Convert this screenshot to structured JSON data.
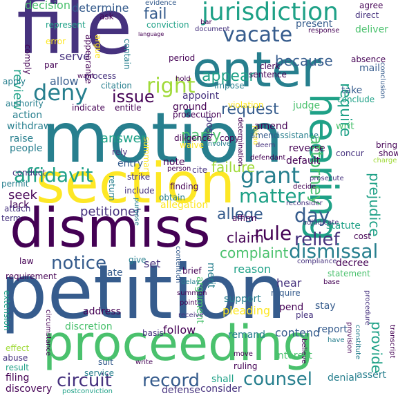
{
  "words": [
    {
      "text": "file",
      "color": "#46327e",
      "rotate": false
    },
    {
      "text": "motion",
      "color": "#277f8e",
      "rotate": false
    },
    {
      "text": "petition",
      "color": "#365c8d",
      "rotate": false
    },
    {
      "text": "dismiss",
      "color": "#440154",
      "rotate": false
    },
    {
      "text": "section",
      "color": "#fde725",
      "rotate": false
    },
    {
      "text": "proceeding",
      "color": "#4ac16d",
      "rotate": false
    },
    {
      "text": "enter",
      "color": "#277f8e",
      "rotate": false
    },
    {
      "text": "hearing",
      "color": "#1fa187",
      "rotate": true
    },
    {
      "text": "jurisdiction",
      "color": "#1fa187",
      "rotate": false
    },
    {
      "text": "deny",
      "color": "#277f8e",
      "rotate": false
    },
    {
      "text": "vacate",
      "color": "#365c8d",
      "rotate": false
    },
    {
      "text": "grant",
      "color": "#277f8e",
      "rotate": false
    },
    {
      "text": "right",
      "color": "#a0da39",
      "rotate": false
    },
    {
      "text": "affidavit",
      "color": "#1fa187",
      "rotate": false
    },
    {
      "text": "matter",
      "color": "#1fa187",
      "rotate": false
    },
    {
      "text": "day",
      "color": "#365c8d",
      "rotate": false
    },
    {
      "text": "rule",
      "color": "#440154",
      "rotate": false
    },
    {
      "text": "relief",
      "color": "#46327e",
      "rotate": false
    },
    {
      "text": "dismissal",
      "color": "#277f8e",
      "rotate": false
    },
    {
      "text": "notice",
      "color": "#365c8d",
      "rotate": false
    },
    {
      "text": "claim",
      "color": "#440154",
      "rotate": false
    },
    {
      "text": "allege",
      "color": "#365c8d",
      "rotate": false
    },
    {
      "text": "counsel",
      "color": "#277f8e",
      "rotate": false
    },
    {
      "text": "circuit",
      "color": "#46327e",
      "rotate": false
    },
    {
      "text": "record",
      "color": "#365c8d",
      "rotate": false
    },
    {
      "text": "attorney",
      "color": "#4ac16d",
      "rotate": true
    },
    {
      "text": "request",
      "color": "#365c8d",
      "rotate": false
    },
    {
      "text": "fail",
      "color": "#365c8d",
      "rotate": false
    },
    {
      "text": "issue",
      "color": "#440154",
      "rotate": false
    },
    {
      "text": "appear",
      "color": "#1fa187",
      "rotate": false
    },
    {
      "text": "because",
      "color": "#365c8d",
      "rotate": false
    },
    {
      "text": "require",
      "color": "#1fa187",
      "rotate": true
    },
    {
      "text": "failure",
      "color": "#a0da39",
      "rotate": false
    },
    {
      "text": "party",
      "color": "#4ac16d",
      "rotate": false
    },
    {
      "text": "petitioner",
      "color": "#46327e",
      "rotate": false
    },
    {
      "text": "complaint",
      "color": "#4ac16d",
      "rotate": false
    },
    {
      "text": "provide",
      "color": "#1fa187",
      "rotate": true
    },
    {
      "text": "prejudice",
      "color": "#1fa187",
      "rotate": true
    },
    {
      "text": "answer",
      "color": "#1fa187",
      "rotate": false
    },
    {
      "text": "review",
      "color": "#1fa187",
      "rotate": true
    },
    {
      "text": "decision",
      "color": "#4ac16d",
      "rotate": false
    },
    {
      "text": "determine",
      "color": "#365c8d",
      "rotate": false
    },
    {
      "text": "serve",
      "color": "#46327e",
      "rotate": false
    },
    {
      "text": "allow",
      "color": "#365c8d",
      "rotate": false
    },
    {
      "text": "comply",
      "color": "#440154",
      "rotate": true
    },
    {
      "text": "error",
      "color": "#fde725",
      "rotate": false
    },
    {
      "text": "argue",
      "color": "#fde725",
      "rotate": true
    },
    {
      "text": "par",
      "color": "#440154",
      "rotate": false
    },
    {
      "text": "present",
      "color": "#365c8d",
      "rotate": false
    },
    {
      "text": "deliver",
      "color": "#4ac16d",
      "rotate": false
    },
    {
      "text": "action",
      "color": "#277f8e",
      "rotate": false
    },
    {
      "text": "withdraw",
      "color": "#277f8e",
      "rotate": false
    },
    {
      "text": "raise",
      "color": "#277f8e",
      "rotate": false
    },
    {
      "text": "people",
      "color": "#277f8e",
      "rotate": false
    },
    {
      "text": "seek",
      "color": "#440154",
      "rotate": false
    },
    {
      "text": "lack",
      "color": "#440154",
      "rotate": false
    },
    {
      "text": "authority",
      "color": "#277f8e",
      "rotate": false
    },
    {
      "text": "judge",
      "color": "#4ac16d",
      "rotate": false
    },
    {
      "text": "amend",
      "color": "#440154",
      "rotate": false
    },
    {
      "text": "reverse",
      "color": "#440154",
      "rotate": false
    },
    {
      "text": "default",
      "color": "#440154",
      "rotate": false
    },
    {
      "text": "post",
      "color": "#46327e",
      "rotate": true
    },
    {
      "text": "ground",
      "color": "#440154",
      "rotate": false
    },
    {
      "text": "appoint",
      "color": "#46327e",
      "rotate": false
    },
    {
      "text": "entry",
      "color": "#365c8d",
      "rotate": false
    },
    {
      "text": "note",
      "color": "#440154",
      "rotate": false
    },
    {
      "text": "set",
      "color": "#46327e",
      "rotate": false
    },
    {
      "text": "reason",
      "color": "#1fa187",
      "rotate": false
    },
    {
      "text": "hear",
      "color": "#46327e",
      "rotate": false
    },
    {
      "text": "date",
      "color": "#365c8d",
      "rotate": false
    },
    {
      "text": "address",
      "color": "#440154",
      "rotate": false
    },
    {
      "text": "discretion",
      "color": "#4ac16d",
      "rotate": false
    },
    {
      "text": "follow",
      "color": "#440154",
      "rotate": false
    },
    {
      "text": "support",
      "color": "#277f8e",
      "rotate": false
    },
    {
      "text": "pleading",
      "color": "#fde725",
      "rotate": false
    },
    {
      "text": "remand",
      "color": "#277f8e",
      "rotate": false
    },
    {
      "text": "contend",
      "color": "#365c8d",
      "rotate": false
    },
    {
      "text": "interest",
      "color": "#4ac16d",
      "rotate": false
    },
    {
      "text": "shall",
      "color": "#1fa187",
      "rotate": false
    },
    {
      "text": "consider",
      "color": "#46327e",
      "rotate": false
    },
    {
      "text": "defense",
      "color": "#46327e",
      "rotate": false
    },
    {
      "text": "filing",
      "color": "#440154",
      "rotate": false
    },
    {
      "text": "discovery",
      "color": "#440154",
      "rotate": false
    },
    {
      "text": "result",
      "color": "#1fa187",
      "rotate": false
    },
    {
      "text": "merit",
      "color": "#277f8e",
      "rotate": true
    },
    {
      "text": "argument",
      "color": "#4ac16d",
      "rotate": true
    },
    {
      "text": "summary",
      "color": "#fde725",
      "rotate": true
    },
    {
      "text": "allegation",
      "color": "#fde725",
      "rotate": false
    },
    {
      "text": "require",
      "color": "#365c8d",
      "rotate": false
    },
    {
      "text": "amend",
      "color": "#365c8d",
      "rotate": false
    },
    {
      "text": "take",
      "color": "#365c8d",
      "rotate": false
    },
    {
      "text": "conclude",
      "color": "#1fa187",
      "rotate": false
    },
    {
      "text": "writ",
      "color": "#4ac16d",
      "rotate": false
    },
    {
      "text": "mail",
      "color": "#365c8d",
      "rotate": false
    },
    {
      "text": "statute",
      "color": "#1fa187",
      "rotate": false
    },
    {
      "text": "cost",
      "color": "#440154",
      "rotate": false
    },
    {
      "text": "decree",
      "color": "#440154",
      "rotate": false
    },
    {
      "text": "statement",
      "color": "#4ac16d",
      "rotate": false
    },
    {
      "text": "report",
      "color": "#365c8d",
      "rotate": false
    },
    {
      "text": "stay",
      "color": "#365c8d",
      "rotate": false
    },
    {
      "text": "pend",
      "color": "#440154",
      "rotate": false
    },
    {
      "text": "plea",
      "color": "#46327e",
      "rotate": false
    },
    {
      "text": "ruling",
      "color": "#440154",
      "rotate": false
    },
    {
      "text": "denial",
      "color": "#277f8e",
      "rotate": false
    },
    {
      "text": "assert",
      "color": "#277f8e",
      "rotate": false
    },
    {
      "text": "service",
      "color": "#277f8e",
      "rotate": false
    },
    {
      "text": "suit",
      "color": "#365c8d",
      "rotate": false
    },
    {
      "text": "basis",
      "color": "#46327e",
      "rotate": false
    },
    {
      "text": "give",
      "color": "#277f8e",
      "rotate": false
    },
    {
      "text": "law",
      "color": "#440154",
      "rotate": false
    },
    {
      "text": "requirement",
      "color": "#440154",
      "rotate": false
    },
    {
      "text": "extension",
      "color": "#1fa187",
      "rotate": true
    },
    {
      "text": "effect",
      "color": "#a0da39",
      "rotate": false
    },
    {
      "text": "abuse",
      "color": "#46327e",
      "rotate": false
    },
    {
      "text": "attach",
      "color": "#46327e",
      "rotate": false
    },
    {
      "text": "conduct",
      "color": "#46327e",
      "rotate": false
    },
    {
      "text": "permit",
      "color": "#277f8e",
      "rotate": false
    },
    {
      "text": "term",
      "color": "#46327e",
      "rotate": false
    },
    {
      "text": "finding",
      "color": "#440154",
      "rotate": false
    },
    {
      "text": "obtain",
      "color": "#277f8e",
      "rotate": false
    },
    {
      "text": "include",
      "color": "#46327e",
      "rotate": false
    },
    {
      "text": "return",
      "color": "#277f8e",
      "rotate": true
    },
    {
      "text": "strike",
      "color": "#46327e",
      "rotate": false
    },
    {
      "text": "rely",
      "color": "#46327e",
      "rotate": false
    },
    {
      "text": "indicate",
      "color": "#440154",
      "rotate": false
    },
    {
      "text": "entitle",
      "color": "#440154",
      "rotate": false
    },
    {
      "text": "citation",
      "color": "#277f8e",
      "rotate": false
    },
    {
      "text": "prosecution",
      "color": "#440154",
      "rotate": false
    },
    {
      "text": "diligence",
      "color": "#440154",
      "rotate": false
    },
    {
      "text": "violation",
      "color": "#fde725",
      "rotate": false
    },
    {
      "text": "copy",
      "color": "#440154",
      "rotate": false
    },
    {
      "text": "assistance",
      "color": "#277f8e",
      "rotate": false
    },
    {
      "text": "concur",
      "color": "#46327e",
      "rotate": false
    },
    {
      "text": "process",
      "color": "#46327e",
      "rotate": false
    },
    {
      "text": "appearance",
      "color": "#440154",
      "rotate": true
    },
    {
      "text": "contain",
      "color": "#277f8e",
      "rotate": true
    },
    {
      "text": "want",
      "color": "#440154",
      "rotate": false
    },
    {
      "text": "period",
      "color": "#440154",
      "rotate": false
    },
    {
      "text": "conviction",
      "color": "#1fa187",
      "rotate": false
    },
    {
      "text": "document",
      "color": "#46327e",
      "rotate": false
    },
    {
      "text": "clerk",
      "color": "#440154",
      "rotate": false
    },
    {
      "text": "sentence",
      "color": "#440154",
      "rotate": false
    },
    {
      "text": "impose",
      "color": "#277f8e",
      "rotate": false
    },
    {
      "text": "response",
      "color": "#440154",
      "rotate": false
    },
    {
      "text": "absence",
      "color": "#440154",
      "rotate": false
    },
    {
      "text": "direct",
      "color": "#46327e",
      "rotate": false
    },
    {
      "text": "agree",
      "color": "#440154",
      "rotate": false
    },
    {
      "text": "represent",
      "color": "#1fa187",
      "rotate": false
    },
    {
      "text": "ask",
      "color": "#440154",
      "rotate": false
    },
    {
      "text": "evidence",
      "color": "#365c8d",
      "rotate": false
    },
    {
      "text": "apply",
      "color": "#277f8e",
      "rotate": false
    },
    {
      "text": "bar",
      "color": "#440154",
      "rotate": false
    },
    {
      "text": "conclusion",
      "color": "#365c8d",
      "rotate": true
    },
    {
      "text": "bring",
      "color": "#440154",
      "rotate": false
    },
    {
      "text": "show",
      "color": "#440154",
      "rotate": false
    },
    {
      "text": "charge",
      "color": "#a0da39",
      "rotate": false
    },
    {
      "text": "cite",
      "color": "#46327e",
      "rotate": false
    },
    {
      "text": "person",
      "color": "#440154",
      "rotate": false
    },
    {
      "text": "waive",
      "color": "#fde725",
      "rotate": false
    },
    {
      "text": "involve",
      "color": "#277f8e",
      "rotate": false
    },
    {
      "text": "determination",
      "color": "#440154",
      "rotate": true
    },
    {
      "text": "plead",
      "color": "#fde725",
      "rotate": true
    },
    {
      "text": "defendant",
      "color": "#440154",
      "rotate": false
    },
    {
      "text": "prosecute",
      "color": "#46327e",
      "rotate": false
    },
    {
      "text": "decide",
      "color": "#440154",
      "rotate": false
    },
    {
      "text": "reconsider",
      "color": "#46327e",
      "rotate": false
    },
    {
      "text": "affirm",
      "color": "#440154",
      "rotate": false
    },
    {
      "text": "adjudicate",
      "color": "#46327e",
      "rotate": false
    },
    {
      "text": "purpose",
      "color": "#277f8e",
      "rotate": true
    },
    {
      "text": "contention",
      "color": "#365c8d",
      "rotate": true
    },
    {
      "text": "brief",
      "color": "#440154",
      "rotate": false
    },
    {
      "text": "delay",
      "color": "#277f8e",
      "rotate": false
    },
    {
      "text": "summon",
      "color": "#440154",
      "rotate": false
    },
    {
      "text": "point",
      "color": "#440154",
      "rotate": false
    },
    {
      "text": "receive",
      "color": "#46327e",
      "rotate": false
    },
    {
      "text": "circumstance",
      "color": "#440154",
      "rotate": true
    },
    {
      "text": "write",
      "color": "#440154",
      "rotate": false
    },
    {
      "text": "move",
      "color": "#440154",
      "rotate": false
    },
    {
      "text": "base",
      "color": "#440154",
      "rotate": false
    },
    {
      "text": "procedure",
      "color": "#46327e",
      "rotate": true
    },
    {
      "text": "have",
      "color": "#277f8e",
      "rotate": false
    },
    {
      "text": "believe",
      "color": "#440154",
      "rotate": true
    },
    {
      "text": "transcript",
      "color": "#440154",
      "rotate": true
    },
    {
      "text": "postconviction",
      "color": "#1fa187",
      "rotate": false
    },
    {
      "text": "constitute",
      "color": "#277f8e",
      "rotate": true
    },
    {
      "text": "compliance",
      "color": "#46327e",
      "rotate": false
    },
    {
      "text": "provision",
      "color": "#440154",
      "rotate": true
    },
    {
      "text": "language",
      "color": "#440154",
      "rotate": false
    },
    {
      "text": "deem",
      "color": "#46327e",
      "rotate": false
    },
    {
      "text": "hold",
      "color": "#440154",
      "rotate": false
    }
  ]
}
